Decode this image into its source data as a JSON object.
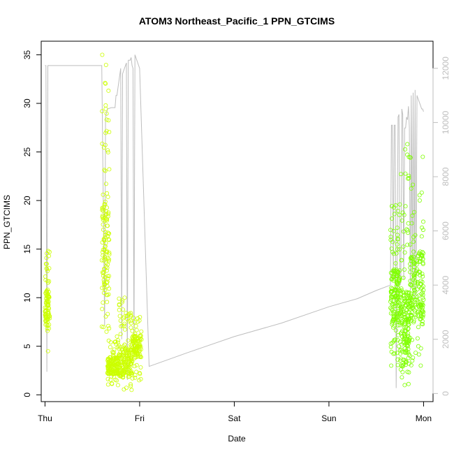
{
  "chart_data": {
    "type": "scatter",
    "title": "ATOM3 Northeast_Pacific_1 PPN_GTCIMS",
    "xlabel": "Date",
    "ylabel": "PPN_GTCIMS",
    "x_tick_labels": [
      "Thu",
      "Fri",
      "Sat",
      "Sun",
      "Mon"
    ],
    "x_tick_values": [
      0,
      1,
      2,
      3,
      4
    ],
    "xlim": [
      -0.04,
      4.1
    ],
    "ylim": [
      -0.7,
      36.4
    ],
    "y_ticks": [
      0,
      5,
      10,
      15,
      20,
      25,
      30,
      35
    ],
    "y2_ticks": [
      0,
      2000,
      4000,
      6000,
      8000,
      10000,
      12000
    ],
    "y2lim": [
      -300,
      13000
    ],
    "colors": {
      "points_early": "#ccff00",
      "points_late": "#7fff00",
      "secondary_line": "#bebebe",
      "axis": "#000000",
      "secondary_axis": "#bebebe"
    },
    "series": [
      {
        "type": "points",
        "clusters": [
          {
            "x_range": [
              0.0,
              0.05
            ],
            "y_min": 4.5,
            "y_max": 14.8,
            "y_mid": 9,
            "count": 90,
            "color": "#ccff00"
          },
          {
            "x_range": [
              0.6,
              0.68
            ],
            "y_min": 6.5,
            "y_max": 35.0,
            "y_mid": 15,
            "count": 130,
            "color": "#ccff00"
          },
          {
            "x_range": [
              0.66,
              0.78
            ],
            "y_min": 1.0,
            "y_max": 6.0,
            "y_mid": 3,
            "count": 150,
            "color": "#ccff00"
          },
          {
            "x_range": [
              0.78,
              0.92
            ],
            "y_min": 0.5,
            "y_max": 10.0,
            "y_mid": 3.5,
            "count": 170,
            "color": "#ccff00"
          },
          {
            "x_range": [
              0.92,
              1.02
            ],
            "y_min": 1.5,
            "y_max": 8.0,
            "y_mid": 5,
            "count": 110,
            "color": "#ccff00"
          },
          {
            "x_range": [
              3.65,
              3.75
            ],
            "y_min": 3.0,
            "y_max": 19.6,
            "y_mid": 10,
            "count": 170,
            "color": "#7fff00"
          },
          {
            "x_range": [
              3.75,
              3.85
            ],
            "y_min": 1.0,
            "y_max": 25.8,
            "y_mid": 6.5,
            "count": 180,
            "color": "#7fff00"
          },
          {
            "x_range": [
              3.85,
              4.0
            ],
            "y_min": 3.0,
            "y_max": 24.5,
            "y_mid": 11,
            "count": 190,
            "color": "#7fff00"
          }
        ]
      },
      {
        "type": "line",
        "axis": "right",
        "x": [
          0.0,
          0.01,
          0.02,
          0.03,
          0.2,
          0.4,
          0.6,
          0.63,
          0.64,
          0.66,
          0.7,
          0.74,
          0.75,
          0.76,
          0.8,
          0.81,
          0.82,
          0.84,
          0.85,
          0.86,
          0.87,
          0.88,
          0.9,
          0.91,
          0.92,
          0.93,
          0.94,
          0.95,
          0.96,
          1.0,
          1.1,
          1.5,
          2.0,
          2.5,
          3.0,
          3.3,
          3.5,
          3.65,
          3.66,
          3.67,
          3.68,
          3.69,
          3.7,
          3.71,
          3.72,
          3.73,
          3.74,
          3.75,
          3.76,
          3.77,
          3.78,
          3.79,
          3.8,
          3.81,
          3.82,
          3.83,
          3.84,
          3.85,
          3.86,
          3.87,
          3.88,
          3.89,
          3.9,
          3.91,
          3.92,
          3.93,
          3.94,
          3.95,
          3.96,
          3.97,
          3.98,
          3.99,
          4.0
        ],
        "y": [
          12100,
          12100,
          800,
          12100,
          12100,
          12100,
          12100,
          2500,
          10200,
          10500,
          10550,
          10550,
          11000,
          11000,
          12000,
          2000,
          11800,
          12000,
          12100,
          12200,
          500,
          12300,
          12300,
          12400,
          12100,
          12000,
          1500,
          12500,
          12400,
          12000,
          1000,
          1500,
          2100,
          2600,
          3200,
          3500,
          3800,
          4000,
          9900,
          9900,
          4200,
          9900,
          9900,
          200,
          4500,
          10200,
          10300,
          4000,
          4100,
          10500,
          10300,
          4200,
          9800,
          9800,
          10200,
          10100,
          10600,
          9800,
          3800,
          11000,
          3900,
          11100,
          3500,
          11200,
          3600,
          11000,
          10900,
          10800,
          10700,
          10600,
          10500,
          10500,
          10400
        ]
      }
    ]
  }
}
